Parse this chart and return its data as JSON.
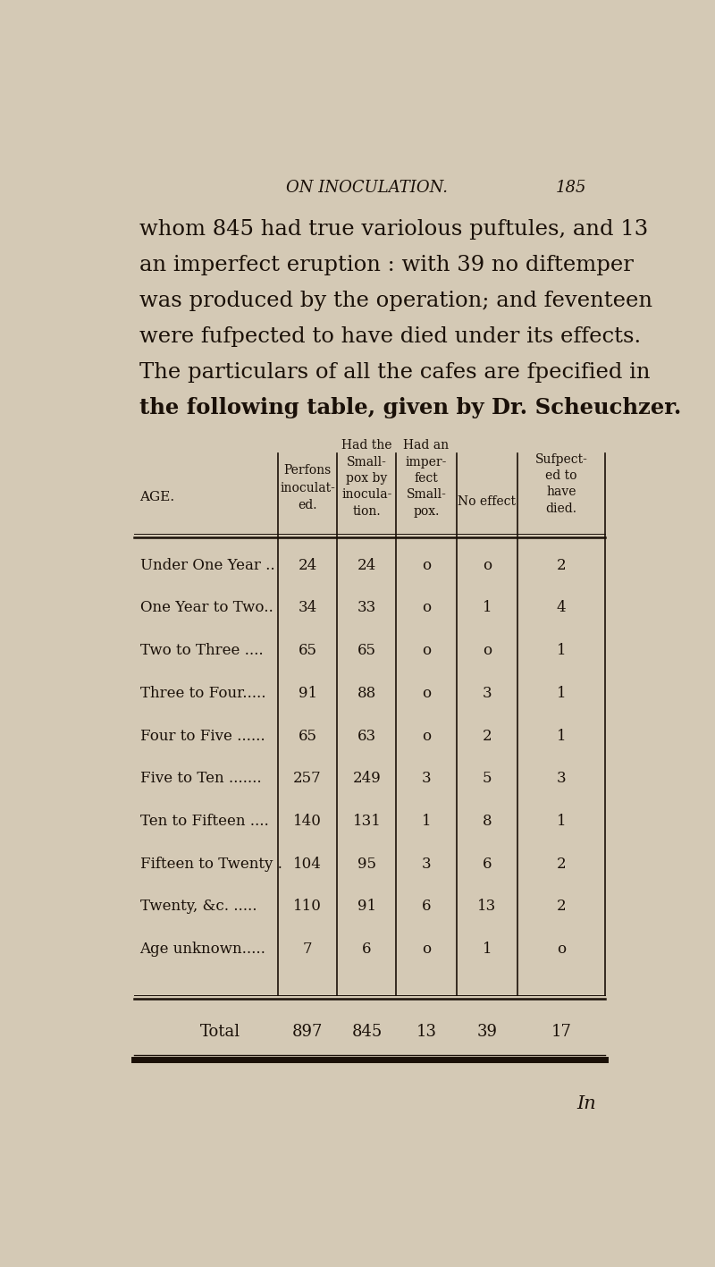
{
  "page_title": "ON INOCULATION.",
  "page_number": "185",
  "intro_text": [
    "whom 845 had true variolous puftules, and 13",
    "an imperfect eruption : with 39 no diftemper",
    "was produced by the operation; and feventeen",
    "were fufpected to have died under its effects.",
    "The particulars of all the cafes are fpecified in",
    "the following table, given by Dr. Scheuchzer."
  ],
  "rows": [
    [
      "Under One Year ..",
      "24",
      "24",
      "o",
      "o",
      "2"
    ],
    [
      "One Year to Two..",
      "34",
      "33",
      "o",
      "1",
      "4"
    ],
    [
      "Two to Three ....",
      "65",
      "65",
      "o",
      "o",
      "1"
    ],
    [
      "Three to Four.....",
      "91",
      "88",
      "o",
      "3",
      "1"
    ],
    [
      "Four to Five ......",
      "65",
      "63",
      "o",
      "2",
      "1"
    ],
    [
      "Five to Ten .......",
      "257",
      "249",
      "3",
      "5",
      "3"
    ],
    [
      "Ten to Fifteen ....",
      "140",
      "131",
      "1",
      "8",
      "1"
    ],
    [
      "Fifteen to Twenty .",
      "104",
      "95",
      "3",
      "6",
      "2"
    ],
    [
      "Twenty, &c. .....",
      "110",
      "91",
      "6",
      "13",
      "2"
    ],
    [
      "Age unknown.....",
      "7",
      "6",
      "o",
      "1",
      "o"
    ]
  ],
  "total_row": [
    "Total",
    "897",
    "845",
    "13",
    "39",
    "17"
  ],
  "footer_text": "In",
  "bg_color": "#d4c9b5",
  "text_color": "#1a1008",
  "header_age": "AGE.",
  "header_persons": "Perfons\ninoculat-\ned.",
  "header_had_small": "Had the\nSmall-\npox by\ninocula-\ntion.",
  "header_had_imperf": "Had an\nimper-\nfect\nSmall-\npox.",
  "header_no_effect": "No effect",
  "header_suspected": "Sufpect-\ned to\nhave\ndied."
}
